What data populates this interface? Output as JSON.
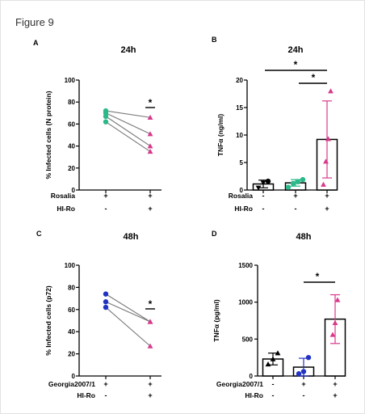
{
  "figure_title": "Figure 9",
  "colors": {
    "green": "#2bb88a",
    "pink": "#d9388a",
    "blue": "#2233c4",
    "black": "#000000"
  },
  "chart_data": [
    {
      "panel": "A",
      "type": "scatter",
      "title": "24h",
      "ylabel": "% Infected cells (N protein)",
      "ylim": [
        0,
        100
      ],
      "yticks": [
        "0",
        "20",
        "40",
        "60",
        "80",
        "100"
      ],
      "conditions": [
        {
          "label": "Rosalia",
          "values": [
            "+",
            "+"
          ]
        },
        {
          "label": "HI-Ro",
          "values": [
            "-",
            "+"
          ]
        }
      ],
      "series": [
        {
          "values": [
            72,
            66
          ],
          "color": "green",
          "color2": "pink"
        },
        {
          "values": [
            70,
            51
          ],
          "color": "green",
          "color2": "pink"
        },
        {
          "values": [
            67,
            40
          ],
          "color": "green",
          "color2": "pink"
        },
        {
          "values": [
            62,
            35
          ],
          "color": "green",
          "color2": "pink"
        }
      ],
      "significance": [
        "*"
      ]
    },
    {
      "panel": "B",
      "type": "bar",
      "title": "24h",
      "ylabel": "TNFα (ng/ml)",
      "ylim": [
        0,
        20
      ],
      "yticks": [
        "0",
        "5",
        "10",
        "15",
        "20"
      ],
      "conditions": [
        {
          "label": "Rosalia",
          "values": [
            "-",
            "+",
            "+"
          ]
        },
        {
          "label": "HI-Ro",
          "values": [
            "-",
            "-",
            "+"
          ]
        }
      ],
      "bars": [
        {
          "mean": 1.1,
          "sd": 0.7,
          "color": "black",
          "points": [
            0.4,
            1.3,
            1.6
          ]
        },
        {
          "mean": 1.3,
          "sd": 0.6,
          "color": "green",
          "points": [
            0.5,
            1.2,
            1.5,
            1.9
          ]
        },
        {
          "mean": 9.2,
          "sd": 7.0,
          "color": "pink",
          "points": [
            1.0,
            5.2,
            9.3,
            18.0
          ]
        }
      ],
      "significance": [
        "*",
        "*"
      ]
    },
    {
      "panel": "C",
      "type": "scatter",
      "title": "48h",
      "ylabel": "% Infected cells (p72)",
      "ylim": [
        0,
        100
      ],
      "yticks": [
        "0",
        "20",
        "40",
        "60",
        "80",
        "100"
      ],
      "conditions": [
        {
          "label": "Georgia2007/1",
          "values": [
            "+",
            "+"
          ]
        },
        {
          "label": "HI-Ro",
          "values": [
            "-",
            "+"
          ]
        }
      ],
      "series": [
        {
          "values": [
            74,
            49
          ],
          "color": "blue",
          "color2": "pink"
        },
        {
          "values": [
            67,
            49
          ],
          "color": "blue",
          "color2": "pink"
        },
        {
          "values": [
            62,
            27
          ],
          "color": "blue",
          "color2": "pink"
        }
      ],
      "significance": [
        "*"
      ]
    },
    {
      "panel": "D",
      "type": "bar",
      "title": "48h",
      "ylabel": "TNFα (pg/ml)",
      "ylim": [
        0,
        1500
      ],
      "yticks": [
        "0",
        "500",
        "1000",
        "1500"
      ],
      "conditions": [
        {
          "label": "Georgia2007/1",
          "values": [
            "-",
            "+",
            "+"
          ]
        },
        {
          "label": "HI-Ro",
          "values": [
            "-",
            "-",
            "+"
          ]
        }
      ],
      "bars": [
        {
          "mean": 230,
          "sd": 80,
          "color": "black",
          "points": [
            160,
            230,
            310
          ]
        },
        {
          "mean": 120,
          "sd": 120,
          "color": "blue",
          "points": [
            30,
            60,
            250
          ]
        },
        {
          "mean": 770,
          "sd": 330,
          "color": "pink",
          "points": [
            560,
            720,
            1030
          ]
        }
      ],
      "significance": [
        "*"
      ]
    }
  ]
}
